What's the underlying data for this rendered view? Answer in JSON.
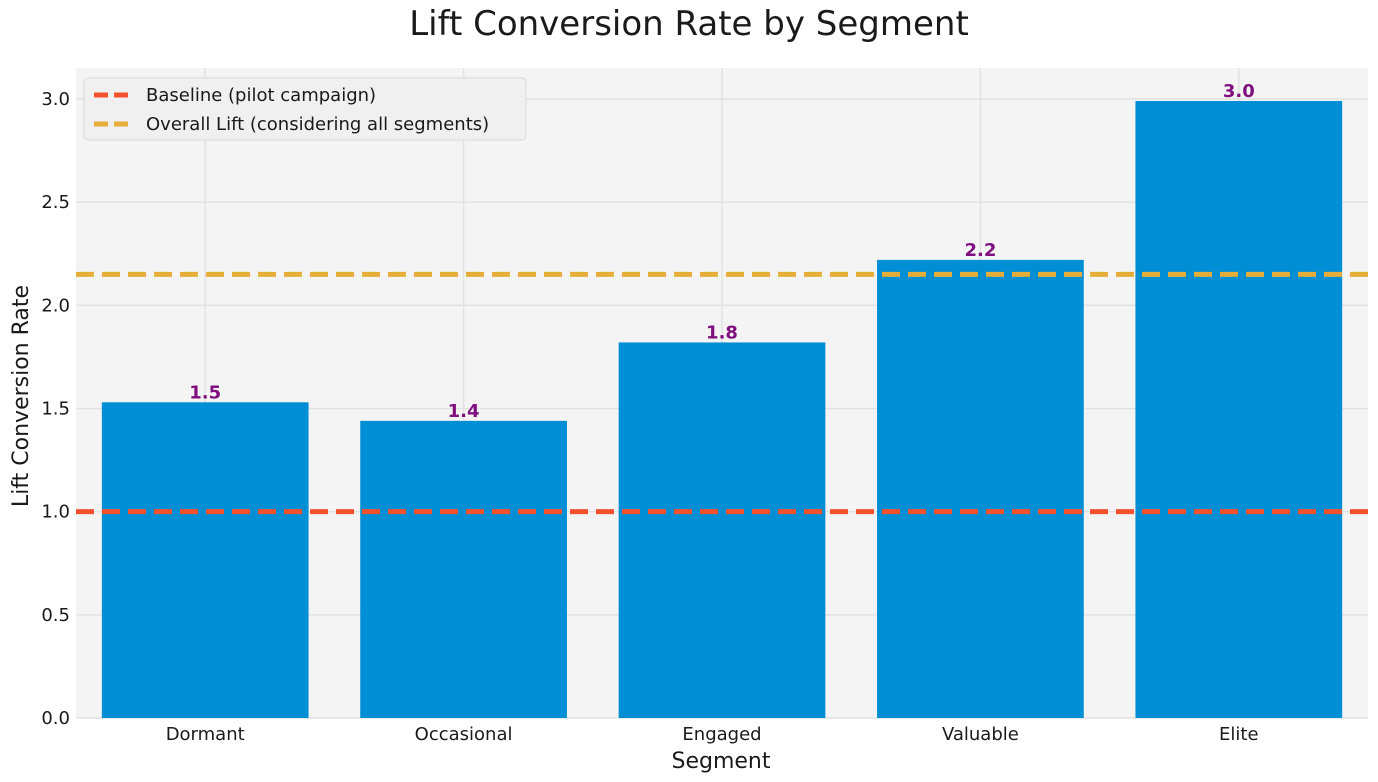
{
  "chart_data": {
    "type": "bar",
    "title": "Lift Conversion Rate by Segment",
    "xlabel": "Segment",
    "ylabel": "Lift Conversion Rate",
    "categories": [
      "Dormant",
      "Occasional",
      "Engaged",
      "Valuable",
      "Elite"
    ],
    "values": [
      1.53,
      1.44,
      1.82,
      2.22,
      2.99
    ],
    "data_labels": [
      "1.5",
      "1.4",
      "1.8",
      "2.2",
      "3.0"
    ],
    "ylim": [
      0,
      3.15
    ],
    "yticks": [
      0.0,
      0.5,
      1.0,
      1.5,
      2.0,
      2.5,
      3.0
    ],
    "ytick_labels": [
      "0.0",
      "0.5",
      "1.0",
      "1.5",
      "2.0",
      "2.5",
      "3.0"
    ],
    "grid": true,
    "legend_position": "top-left",
    "reference_lines": [
      {
        "name": "Baseline (pilot campaign)",
        "value": 1.0,
        "style": "dashed",
        "color": "#f4522d"
      },
      {
        "name": "Overall Lift (considering all segments)",
        "value": 2.15,
        "style": "dashed",
        "color": "#e5ae38"
      }
    ],
    "colors": {
      "bar": "#008fd5",
      "data_label": "#7f0f7e",
      "plot_background": "#f4f4f4",
      "grid": "#e2e2e2"
    }
  }
}
